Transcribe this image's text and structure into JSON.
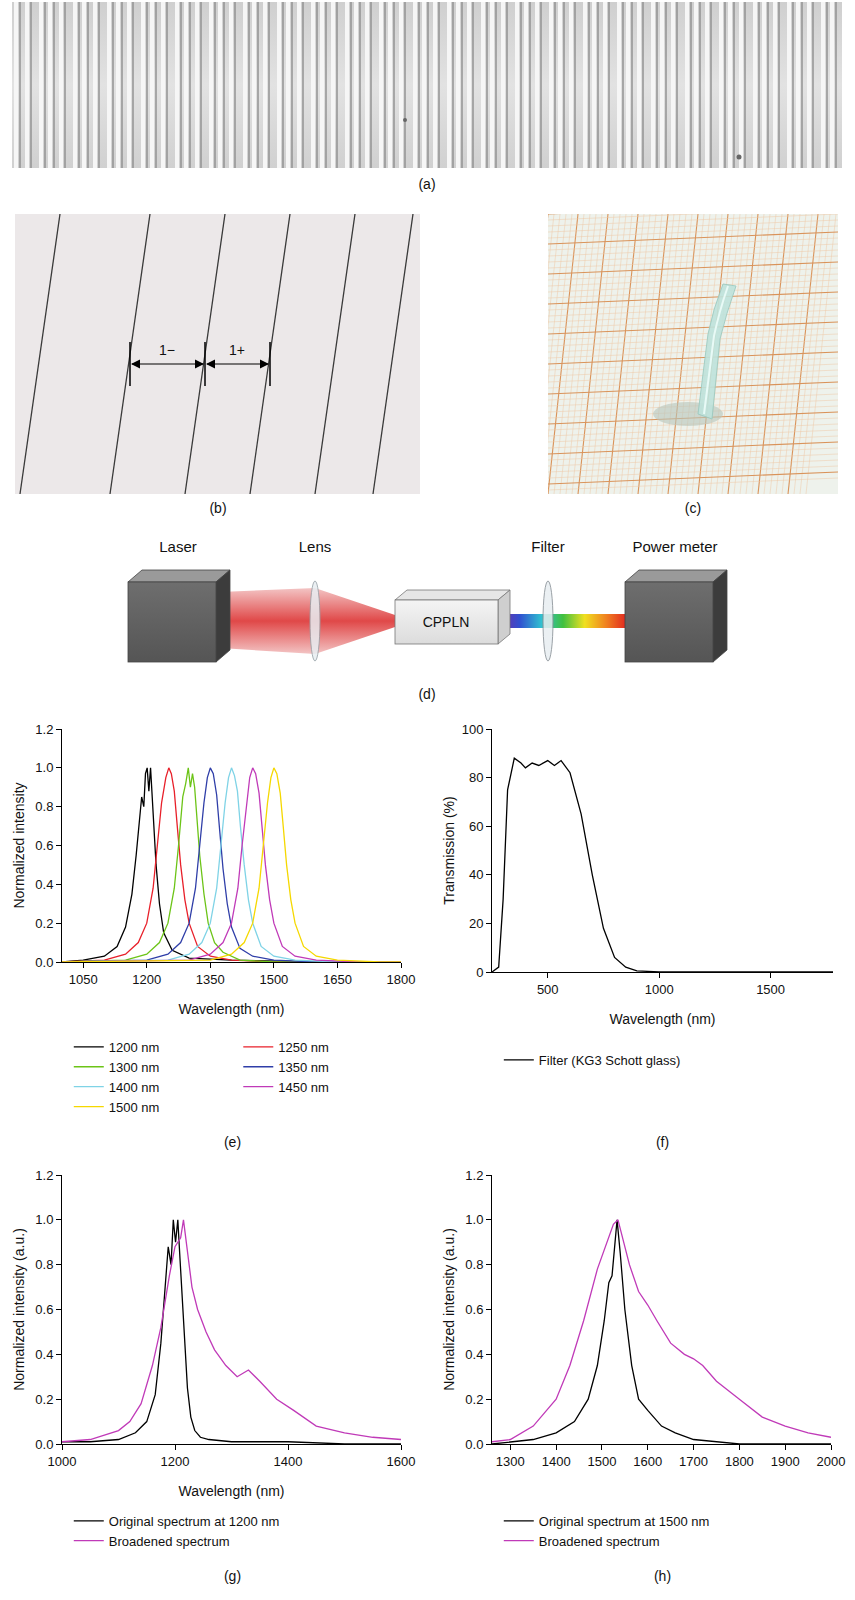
{
  "figure": {
    "panels": {
      "a": {
        "label": "(a)"
      },
      "b": {
        "label": "(b)",
        "markers": [
          "1−",
          "1+"
        ]
      },
      "c": {
        "label": "(c)"
      },
      "d": {
        "label": "(d)",
        "components": [
          "Laser",
          "Lens",
          "CPPLN",
          "Filter",
          "Power meter"
        ]
      }
    }
  },
  "chart_data": [
    {
      "type": "line",
      "title": "(e)",
      "x_label": "Wavelength (nm)",
      "y_label": "Normalized intensity",
      "xlim": [
        1000,
        1800
      ],
      "xticks": [
        1050,
        1200,
        1350,
        1500,
        1650,
        1800
      ],
      "ylim": [
        0,
        1.2
      ],
      "yticks": [
        {
          "value": 0,
          "label": "0.0"
        },
        0.2,
        0.4,
        0.6,
        0.8,
        {
          "value": 1,
          "label": "1.0"
        },
        1.2
      ],
      "grid": false,
      "legend": "bottom",
      "series": [
        {
          "name": "1200 nm",
          "color": "#000000",
          "x": [
            1000,
            1050,
            1100,
            1130,
            1150,
            1165,
            1175,
            1183,
            1188,
            1193,
            1197,
            1201,
            1205,
            1209,
            1213,
            1217,
            1222,
            1230,
            1240,
            1260,
            1300,
            1400,
            1600,
            1800
          ],
          "values": [
            0,
            0.01,
            0.03,
            0.08,
            0.18,
            0.35,
            0.55,
            0.72,
            0.85,
            0.8,
            0.97,
            1.0,
            0.88,
            1.0,
            0.85,
            0.7,
            0.5,
            0.3,
            0.15,
            0.06,
            0.02,
            0.01,
            0,
            0
          ]
        },
        {
          "name": "1250 nm",
          "color": "#e8202a",
          "x": [
            1000,
            1100,
            1150,
            1180,
            1200,
            1215,
            1225,
            1235,
            1245,
            1252,
            1258,
            1265,
            1272,
            1280,
            1290,
            1300,
            1320,
            1350,
            1400,
            1500,
            1800
          ],
          "values": [
            0,
            0.01,
            0.04,
            0.1,
            0.2,
            0.38,
            0.6,
            0.82,
            0.95,
            1.0,
            0.97,
            0.88,
            0.7,
            0.5,
            0.32,
            0.2,
            0.08,
            0.03,
            0.01,
            0,
            0
          ]
        },
        {
          "name": "1300 nm",
          "color": "#6cc417",
          "x": [
            1000,
            1150,
            1200,
            1230,
            1250,
            1265,
            1275,
            1285,
            1292,
            1298,
            1303,
            1308,
            1313,
            1318,
            1325,
            1335,
            1345,
            1360,
            1380,
            1420,
            1500,
            1800
          ],
          "values": [
            0,
            0.01,
            0.04,
            0.1,
            0.2,
            0.38,
            0.6,
            0.85,
            0.92,
            1.0,
            0.9,
            0.97,
            0.9,
            0.75,
            0.55,
            0.35,
            0.2,
            0.1,
            0.05,
            0.01,
            0,
            0
          ]
        },
        {
          "name": "1350 nm",
          "color": "#2f3ea8",
          "x": [
            1000,
            1200,
            1250,
            1280,
            1300,
            1315,
            1325,
            1335,
            1343,
            1350,
            1357,
            1365,
            1372,
            1380,
            1390,
            1400,
            1420,
            1450,
            1500,
            1600,
            1800
          ],
          "values": [
            0,
            0.01,
            0.04,
            0.1,
            0.2,
            0.38,
            0.6,
            0.82,
            0.95,
            1.0,
            0.97,
            0.86,
            0.68,
            0.48,
            0.3,
            0.18,
            0.07,
            0.03,
            0.01,
            0,
            0
          ]
        },
        {
          "name": "1400 nm",
          "color": "#7fd3e6",
          "x": [
            1000,
            1250,
            1300,
            1330,
            1350,
            1365,
            1375,
            1385,
            1393,
            1400,
            1407,
            1414,
            1421,
            1430,
            1440,
            1450,
            1470,
            1500,
            1550,
            1650,
            1800
          ],
          "values": [
            0,
            0.01,
            0.04,
            0.1,
            0.2,
            0.38,
            0.6,
            0.82,
            0.95,
            1.0,
            0.96,
            0.88,
            0.7,
            0.5,
            0.32,
            0.2,
            0.08,
            0.03,
            0.01,
            0,
            0
          ]
        },
        {
          "name": "1450 nm",
          "color": "#c03ab8",
          "x": [
            1000,
            1300,
            1350,
            1380,
            1400,
            1415,
            1425,
            1435,
            1443,
            1450,
            1457,
            1465,
            1472,
            1480,
            1490,
            1500,
            1520,
            1550,
            1600,
            1700,
            1800
          ],
          "values": [
            0,
            0.01,
            0.04,
            0.1,
            0.2,
            0.38,
            0.6,
            0.8,
            0.95,
            1.0,
            0.97,
            0.87,
            0.7,
            0.5,
            0.32,
            0.2,
            0.08,
            0.03,
            0.01,
            0,
            0
          ]
        },
        {
          "name": "1500 nm",
          "color": "#f5d800",
          "x": [
            1000,
            1350,
            1400,
            1430,
            1450,
            1465,
            1475,
            1485,
            1493,
            1500,
            1507,
            1515,
            1522,
            1530,
            1540,
            1550,
            1570,
            1600,
            1650,
            1750,
            1800
          ],
          "values": [
            0,
            0.01,
            0.04,
            0.1,
            0.2,
            0.38,
            0.6,
            0.82,
            0.95,
            1.0,
            0.97,
            0.87,
            0.7,
            0.5,
            0.32,
            0.2,
            0.08,
            0.03,
            0.01,
            0,
            0
          ]
        }
      ]
    },
    {
      "type": "line",
      "title": "(f)",
      "x_label": "Wavelength (nm)",
      "y_label": "Transmission (%)",
      "xlim": [
        250,
        1780
      ],
      "xticks": [
        500,
        1000,
        1500
      ],
      "ylim": [
        0,
        100
      ],
      "yticks": [
        0,
        20,
        40,
        60,
        80,
        100
      ],
      "grid": false,
      "legend": "bottom",
      "series": [
        {
          "name": "Filter (KG3 Schott glass)",
          "color": "#000000",
          "x": [
            250,
            280,
            300,
            320,
            350,
            380,
            400,
            430,
            460,
            500,
            530,
            560,
            600,
            650,
            700,
            750,
            800,
            850,
            900,
            1000,
            1500,
            1780
          ],
          "values": [
            0,
            2,
            30,
            75,
            88,
            86,
            84,
            86,
            85,
            87,
            85,
            87,
            82,
            65,
            40,
            18,
            6,
            2,
            0.5,
            0,
            0,
            0
          ]
        }
      ]
    },
    {
      "type": "line",
      "title": "(g)",
      "x_label": "Wavelength (nm)",
      "y_label": "Normalized intensity (a.u.)",
      "xlim": [
        1000,
        1600
      ],
      "xticks": [
        1000,
        1200,
        1400,
        1600
      ],
      "ylim": [
        0,
        1.2
      ],
      "yticks": [
        {
          "value": 0,
          "label": "0.0"
        },
        0.2,
        0.4,
        0.6,
        0.8,
        {
          "value": 1,
          "label": "1.0"
        },
        1.2
      ],
      "grid": false,
      "legend": "bottom",
      "series": [
        {
          "name": "Original spectrum at 1200 nm",
          "color": "#000000",
          "x": [
            1000,
            1050,
            1100,
            1130,
            1150,
            1165,
            1175,
            1183,
            1188,
            1193,
            1197,
            1201,
            1205,
            1209,
            1213,
            1217,
            1222,
            1228,
            1235,
            1245,
            1260,
            1300,
            1400,
            1500,
            1600
          ],
          "values": [
            0.01,
            0.01,
            0.02,
            0.05,
            0.1,
            0.22,
            0.45,
            0.7,
            0.88,
            0.8,
            1.0,
            0.9,
            1.0,
            0.82,
            0.65,
            0.45,
            0.25,
            0.12,
            0.06,
            0.03,
            0.02,
            0.01,
            0.01,
            0,
            0
          ]
        },
        {
          "name": "Broadened spectrum",
          "color": "#c03ab8",
          "x": [
            1000,
            1050,
            1100,
            1120,
            1140,
            1160,
            1175,
            1190,
            1200,
            1210,
            1215,
            1222,
            1230,
            1240,
            1255,
            1270,
            1290,
            1310,
            1330,
            1350,
            1380,
            1410,
            1450,
            1500,
            1550,
            1600
          ],
          "values": [
            0.01,
            0.02,
            0.06,
            0.1,
            0.18,
            0.35,
            0.52,
            0.75,
            0.88,
            0.92,
            1.0,
            0.85,
            0.7,
            0.6,
            0.5,
            0.42,
            0.35,
            0.3,
            0.33,
            0.28,
            0.2,
            0.15,
            0.08,
            0.05,
            0.03,
            0.02
          ]
        }
      ]
    },
    {
      "type": "line",
      "title": "(h)",
      "x_label": "",
      "y_label": "Normalized intensity (a.u.)",
      "xlim": [
        1260,
        2000
      ],
      "xticks": [
        1300,
        1400,
        1500,
        1600,
        1700,
        1800,
        1900,
        2000
      ],
      "ylim": [
        0,
        1.2
      ],
      "yticks": [
        {
          "value": 0,
          "label": "0.0"
        },
        0.2,
        0.4,
        0.6,
        0.8,
        {
          "value": 1,
          "label": "1.0"
        },
        1.2
      ],
      "grid": false,
      "legend": "bottom",
      "series": [
        {
          "name": "Original spectrum at 1500 nm",
          "color": "#000000",
          "x": [
            1260,
            1300,
            1350,
            1400,
            1440,
            1470,
            1490,
            1505,
            1515,
            1522,
            1528,
            1533,
            1540,
            1550,
            1565,
            1580,
            1600,
            1630,
            1660,
            1700,
            1800,
            1900,
            2000
          ],
          "values": [
            0,
            0.01,
            0.02,
            0.05,
            0.1,
            0.2,
            0.35,
            0.55,
            0.72,
            0.75,
            0.9,
            1.0,
            0.85,
            0.6,
            0.35,
            0.2,
            0.15,
            0.08,
            0.05,
            0.02,
            0,
            0,
            0
          ]
        },
        {
          "name": "Broadened spectrum",
          "color": "#c03ab8",
          "x": [
            1260,
            1300,
            1350,
            1400,
            1430,
            1460,
            1490,
            1510,
            1525,
            1535,
            1545,
            1560,
            1580,
            1600,
            1620,
            1650,
            1680,
            1700,
            1720,
            1750,
            1800,
            1850,
            1900,
            1950,
            2000
          ],
          "values": [
            0.01,
            0.02,
            0.08,
            0.2,
            0.35,
            0.55,
            0.78,
            0.9,
            0.98,
            1.0,
            0.92,
            0.8,
            0.68,
            0.62,
            0.55,
            0.45,
            0.4,
            0.38,
            0.35,
            0.28,
            0.2,
            0.12,
            0.08,
            0.05,
            0.03
          ]
        }
      ]
    }
  ]
}
